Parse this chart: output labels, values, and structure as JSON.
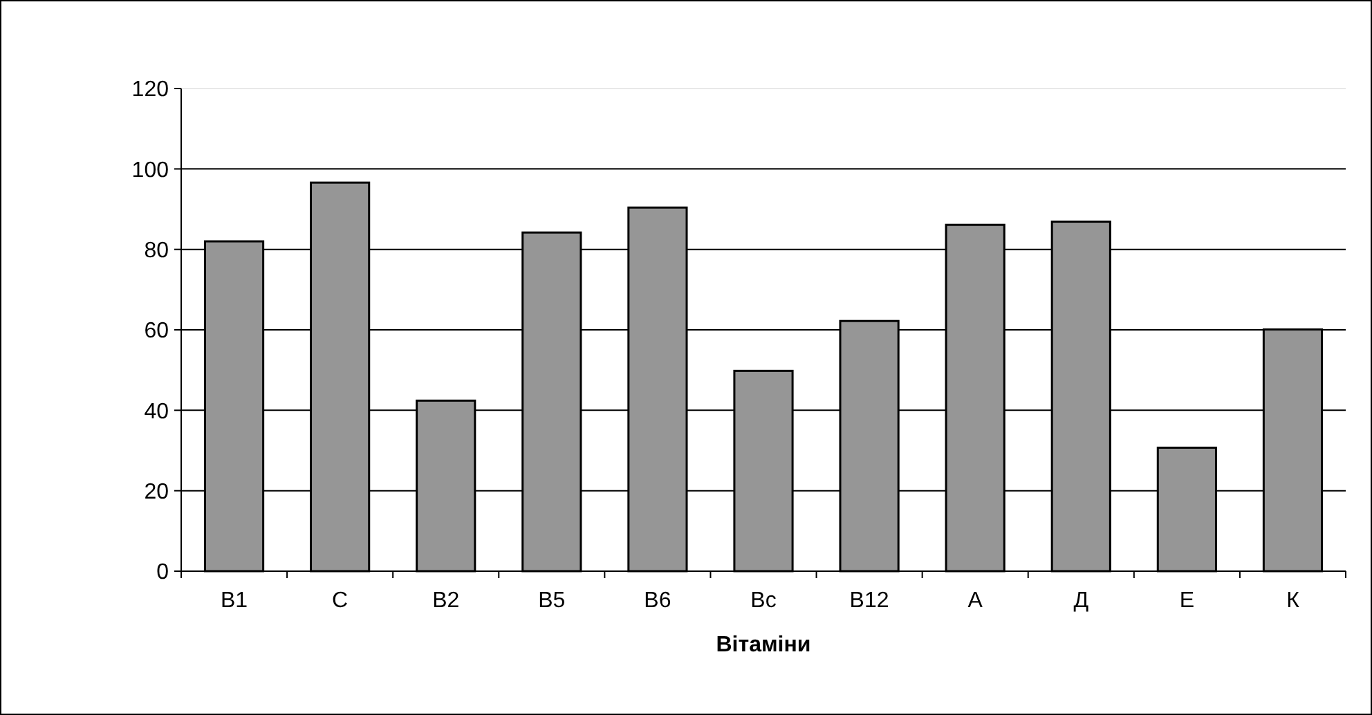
{
  "chart_data": {
    "type": "bar",
    "xlabel": "Вітаміни",
    "categories": [
      "В1",
      "С",
      "В2",
      "В5",
      "В6",
      "Вс",
      "В12",
      "А",
      "Д",
      "Е",
      "К"
    ],
    "values": [
      82,
      96.6,
      42.4,
      84.2,
      90.4,
      49.8,
      62.2,
      86.1,
      86.9,
      30.7,
      60.1
    ],
    "color": "#969696",
    "ylim": [
      0,
      120
    ],
    "yticks": [
      0,
      20,
      40,
      60,
      80,
      100,
      120
    ],
    "grid": "y"
  }
}
